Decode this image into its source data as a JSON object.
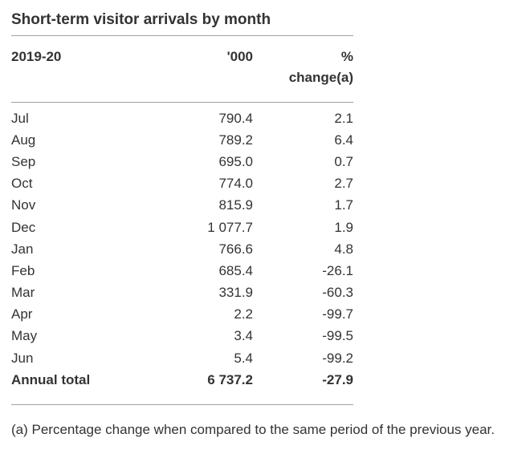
{
  "title": "Short-term visitor arrivals by month",
  "table": {
    "header": {
      "period": "2019-20",
      "unit": "'000",
      "pct_change": "%\nchange(a)"
    },
    "rows": [
      {
        "label": "Jul",
        "thousands": "790.4",
        "pct": "2.1"
      },
      {
        "label": "Aug",
        "thousands": "789.2",
        "pct": "6.4"
      },
      {
        "label": "Sep",
        "thousands": "695.0",
        "pct": "0.7"
      },
      {
        "label": "Oct",
        "thousands": "774.0",
        "pct": "2.7"
      },
      {
        "label": "Nov",
        "thousands": "815.9",
        "pct": "1.7"
      },
      {
        "label": "Dec",
        "thousands": "1 077.7",
        "pct": "1.9"
      },
      {
        "label": "Jan",
        "thousands": "766.6",
        "pct": "4.8"
      },
      {
        "label": "Feb",
        "thousands": "685.4",
        "pct": "-26.1"
      },
      {
        "label": "Mar",
        "thousands": "331.9",
        "pct": "-60.3"
      },
      {
        "label": "Apr",
        "thousands": "2.2",
        "pct": "-99.7"
      },
      {
        "label": "May",
        "thousands": "3.4",
        "pct": "-99.5"
      },
      {
        "label": "Jun",
        "thousands": "5.4",
        "pct": "-99.2"
      }
    ],
    "total": {
      "label": "Annual total",
      "thousands": "6 737.2",
      "pct": "-27.9"
    }
  },
  "footnote": "(a) Percentage change when compared to the same period of the previous year.",
  "colors": {
    "text": "#333333",
    "rule": "#a0a0a0",
    "background": "#ffffff"
  },
  "chart_data": {
    "type": "table",
    "title": "Short-term visitor arrivals by month",
    "columns": [
      "2019-20",
      "'000",
      "% change(a)"
    ],
    "categories": [
      "Jul",
      "Aug",
      "Sep",
      "Oct",
      "Nov",
      "Dec",
      "Jan",
      "Feb",
      "Mar",
      "Apr",
      "May",
      "Jun",
      "Annual total"
    ],
    "series": [
      {
        "name": "'000",
        "values": [
          790.4,
          789.2,
          695.0,
          774.0,
          815.9,
          1077.7,
          766.6,
          685.4,
          331.9,
          2.2,
          3.4,
          5.4,
          6737.2
        ]
      },
      {
        "name": "% change(a)",
        "values": [
          2.1,
          6.4,
          0.7,
          2.7,
          1.7,
          1.9,
          4.8,
          -26.1,
          -60.3,
          -99.7,
          -99.5,
          -99.2,
          -27.9
        ]
      }
    ],
    "footnote": "(a) Percentage change when compared to the same period of the previous year.",
    "layout_hints": {
      "grid": false,
      "rules": "horizontal-only",
      "numeric_alignment": "right",
      "thousands_separator": "space"
    }
  }
}
